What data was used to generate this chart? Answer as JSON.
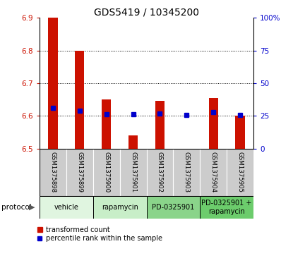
{
  "title": "GDS5419 / 10345200",
  "samples": [
    "GSM1375898",
    "GSM1375899",
    "GSM1375900",
    "GSM1375901",
    "GSM1375902",
    "GSM1375903",
    "GSM1375904",
    "GSM1375905"
  ],
  "red_values": [
    6.9,
    6.8,
    6.65,
    6.54,
    6.645,
    6.5,
    6.655,
    6.6
  ],
  "blue_values": [
    6.625,
    6.615,
    6.605,
    6.605,
    6.607,
    6.603,
    6.612,
    6.602
  ],
  "ylim": [
    6.5,
    6.9
  ],
  "yticks_left": [
    6.5,
    6.6,
    6.7,
    6.8,
    6.9
  ],
  "yticks_right_pct": [
    "0",
    "25",
    "50",
    "75",
    "100%"
  ],
  "bar_bottom": 6.5,
  "protocols": [
    {
      "label": "vehicle",
      "start": 0,
      "end": 2,
      "color": "#e0f5e0"
    },
    {
      "label": "rapamycin",
      "start": 2,
      "end": 4,
      "color": "#c8eec8"
    },
    {
      "label": "PD-0325901",
      "start": 4,
      "end": 6,
      "color": "#8ad48a"
    },
    {
      "label": "PD-0325901 +\nrapamycin",
      "start": 6,
      "end": 8,
      "color": "#6ccc6c"
    }
  ],
  "red_color": "#cc1100",
  "blue_color": "#0000cc",
  "bar_width": 0.35,
  "legend_red": "transformed count",
  "legend_blue": "percentile rank within the sample",
  "protocol_label": "protocol",
  "bg_color_samples": "#cccccc",
  "title_fontsize": 10,
  "tick_fontsize": 7.5,
  "sample_fontsize": 6.2,
  "proto_fontsize": 7,
  "legend_fontsize": 7
}
